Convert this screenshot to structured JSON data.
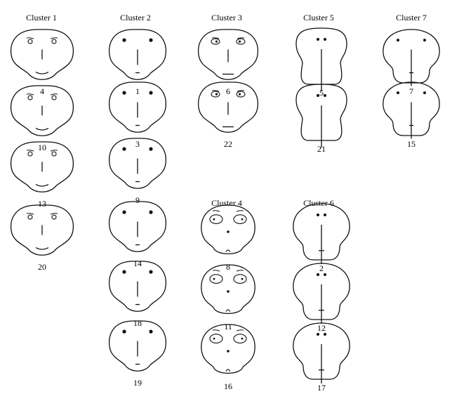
{
  "clusters": [
    {
      "label": "Cluster 1",
      "faces": [
        "4",
        "10",
        "13",
        "20"
      ]
    },
    {
      "label": "Cluster 2",
      "faces": [
        "1",
        "3",
        "9",
        "14",
        "18",
        "19"
      ]
    },
    {
      "label": "Cluster 3",
      "faces": [
        "6",
        "22"
      ]
    },
    {
      "label": "Cluster 4",
      "faces": [
        "8",
        "11",
        "16"
      ]
    },
    {
      "label": "Cluster 5",
      "faces": [
        "5",
        "21"
      ]
    },
    {
      "label": "Cluster 6",
      "faces": [
        "2",
        "12",
        "17"
      ]
    },
    {
      "label": "Cluster 7",
      "faces": [
        "7",
        "15"
      ]
    }
  ]
}
